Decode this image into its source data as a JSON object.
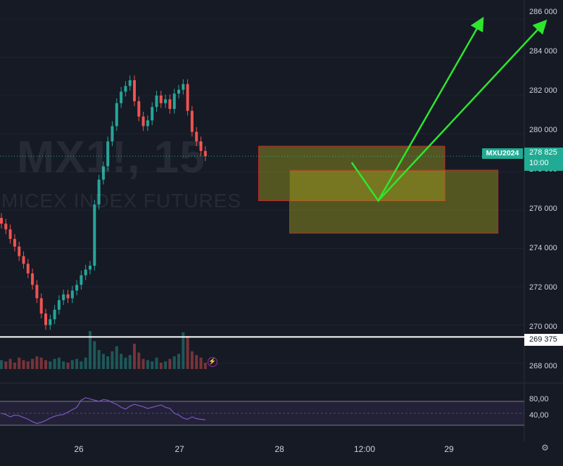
{
  "watermark": {
    "symbol": "MX1!, 15",
    "name": "MICEX INDEX FUTURES"
  },
  "colors": {
    "background": "#161a25",
    "up": "#26a69a",
    "down": "#ef5350",
    "arrow": "#2ee62e",
    "zone_fill": "#a0a020",
    "zone_border": "#c62828",
    "rsi": "#7e57c2",
    "accent": "#22ab94"
  },
  "price_axis": {
    "ticks": [
      "286 000",
      "284 000",
      "282 000",
      "280 000",
      "278 000",
      "276 000",
      "274 000",
      "272 000",
      "270 000",
      "268 000"
    ]
  },
  "last_price": {
    "symbol": "MXU2024",
    "value": "278 825",
    "countdown": "10:00"
  },
  "level_line": {
    "value": "269 375"
  },
  "rsi": {
    "ticks": [
      "80,00",
      "40,00"
    ]
  },
  "time_axis": {
    "labels": [
      "26",
      "27",
      "28",
      "12:00",
      "29"
    ]
  },
  "icons": {
    "flash": "flash-icon",
    "settings": "settings-icon"
  },
  "chart_data": {
    "type": "candlestick",
    "ylim": [
      267700,
      286700
    ],
    "rsi_ylim": [
      30,
      90
    ],
    "rsi_band": [
      30,
      70
    ],
    "level": 269375,
    "last": 278825,
    "zones": [
      {
        "x_range": [
          58,
          100
        ],
        "y_range": [
          276500,
          279350
        ]
      },
      {
        "x_range": [
          65,
          112
        ],
        "y_range": [
          274800,
          278100
        ]
      }
    ],
    "arrows": [
      {
        "points": [
          [
            79,
            278500
          ],
          [
            85,
            276500
          ],
          [
            108,
            285800
          ]
        ]
      },
      {
        "points": [
          [
            85,
            276500
          ],
          [
            122,
            285700
          ]
        ]
      }
    ],
    "candles_close": [
      275300,
      275000,
      274500,
      274100,
      273600,
      273200,
      272700,
      272100,
      271400,
      270600,
      270000,
      270300,
      270800,
      271300,
      271600,
      271400,
      271800,
      272100,
      272600,
      272900,
      273100,
      276300,
      277600,
      278300,
      279600,
      280400,
      281600,
      282200,
      282500,
      282800,
      281700,
      280900,
      280400,
      280700,
      281400,
      282000,
      281600,
      281800,
      281300,
      282100,
      282300,
      282600,
      281200,
      280100,
      279600,
      279100,
      278825
    ],
    "volume": [
      7,
      6,
      8,
      5,
      9,
      7,
      6,
      8,
      10,
      9,
      7,
      6,
      8,
      9,
      6,
      5,
      7,
      8,
      6,
      9,
      30,
      22,
      15,
      12,
      10,
      14,
      18,
      12,
      9,
      11,
      20,
      13,
      8,
      7,
      6,
      9,
      5,
      6,
      8,
      10,
      12,
      29,
      26,
      14,
      11,
      9,
      5
    ],
    "rsi_values": [
      50,
      48,
      44,
      47,
      46,
      43,
      40,
      36,
      33,
      35,
      38,
      42,
      45,
      47,
      48,
      52,
      56,
      60,
      72,
      76,
      74,
      72,
      70,
      73,
      72,
      68,
      65,
      60,
      57,
      62,
      65,
      63,
      61,
      58,
      60,
      62,
      64,
      60,
      58,
      50,
      47,
      42,
      40,
      44,
      41,
      40,
      39
    ]
  }
}
